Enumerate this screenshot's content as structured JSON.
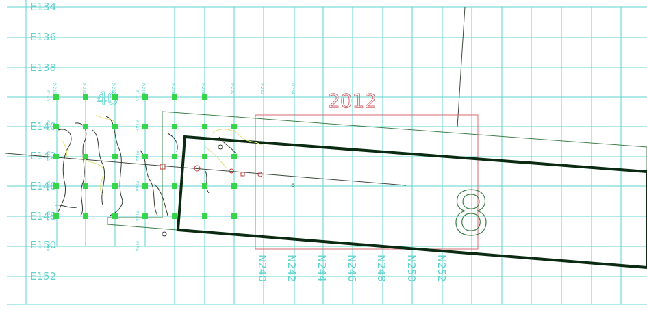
{
  "colors": {
    "grid": "#5fd3cf",
    "excavation_year": "#d46a72",
    "trench_outline": "#0b2a12",
    "thin_outline": "#3f7f4a",
    "survey_points": "#35d64a",
    "contour_yellow": "#e0e07a",
    "contour_dark": "#2f3a2f",
    "feature_red": "#c03838"
  },
  "grid_labels": {
    "easting": [
      "E134",
      "E136",
      "E138",
      "E140",
      "E142",
      "E146",
      "E148",
      "E150",
      "E152"
    ],
    "northing": [
      "N240",
      "N242",
      "N244",
      "N246",
      "N248",
      "N250",
      "N252"
    ],
    "small_cols": [
      "N218",
      "N220",
      "N222",
      "N224",
      "N226",
      "N228",
      "N230",
      "N232",
      "N234",
      "N236",
      "N238"
    ],
    "small_rows": [
      "E140",
      "E142",
      "E144",
      "E146",
      "E148",
      "E150"
    ]
  },
  "annotations": {
    "year": "2012",
    "unit_number": "8",
    "unit_left": "40"
  }
}
